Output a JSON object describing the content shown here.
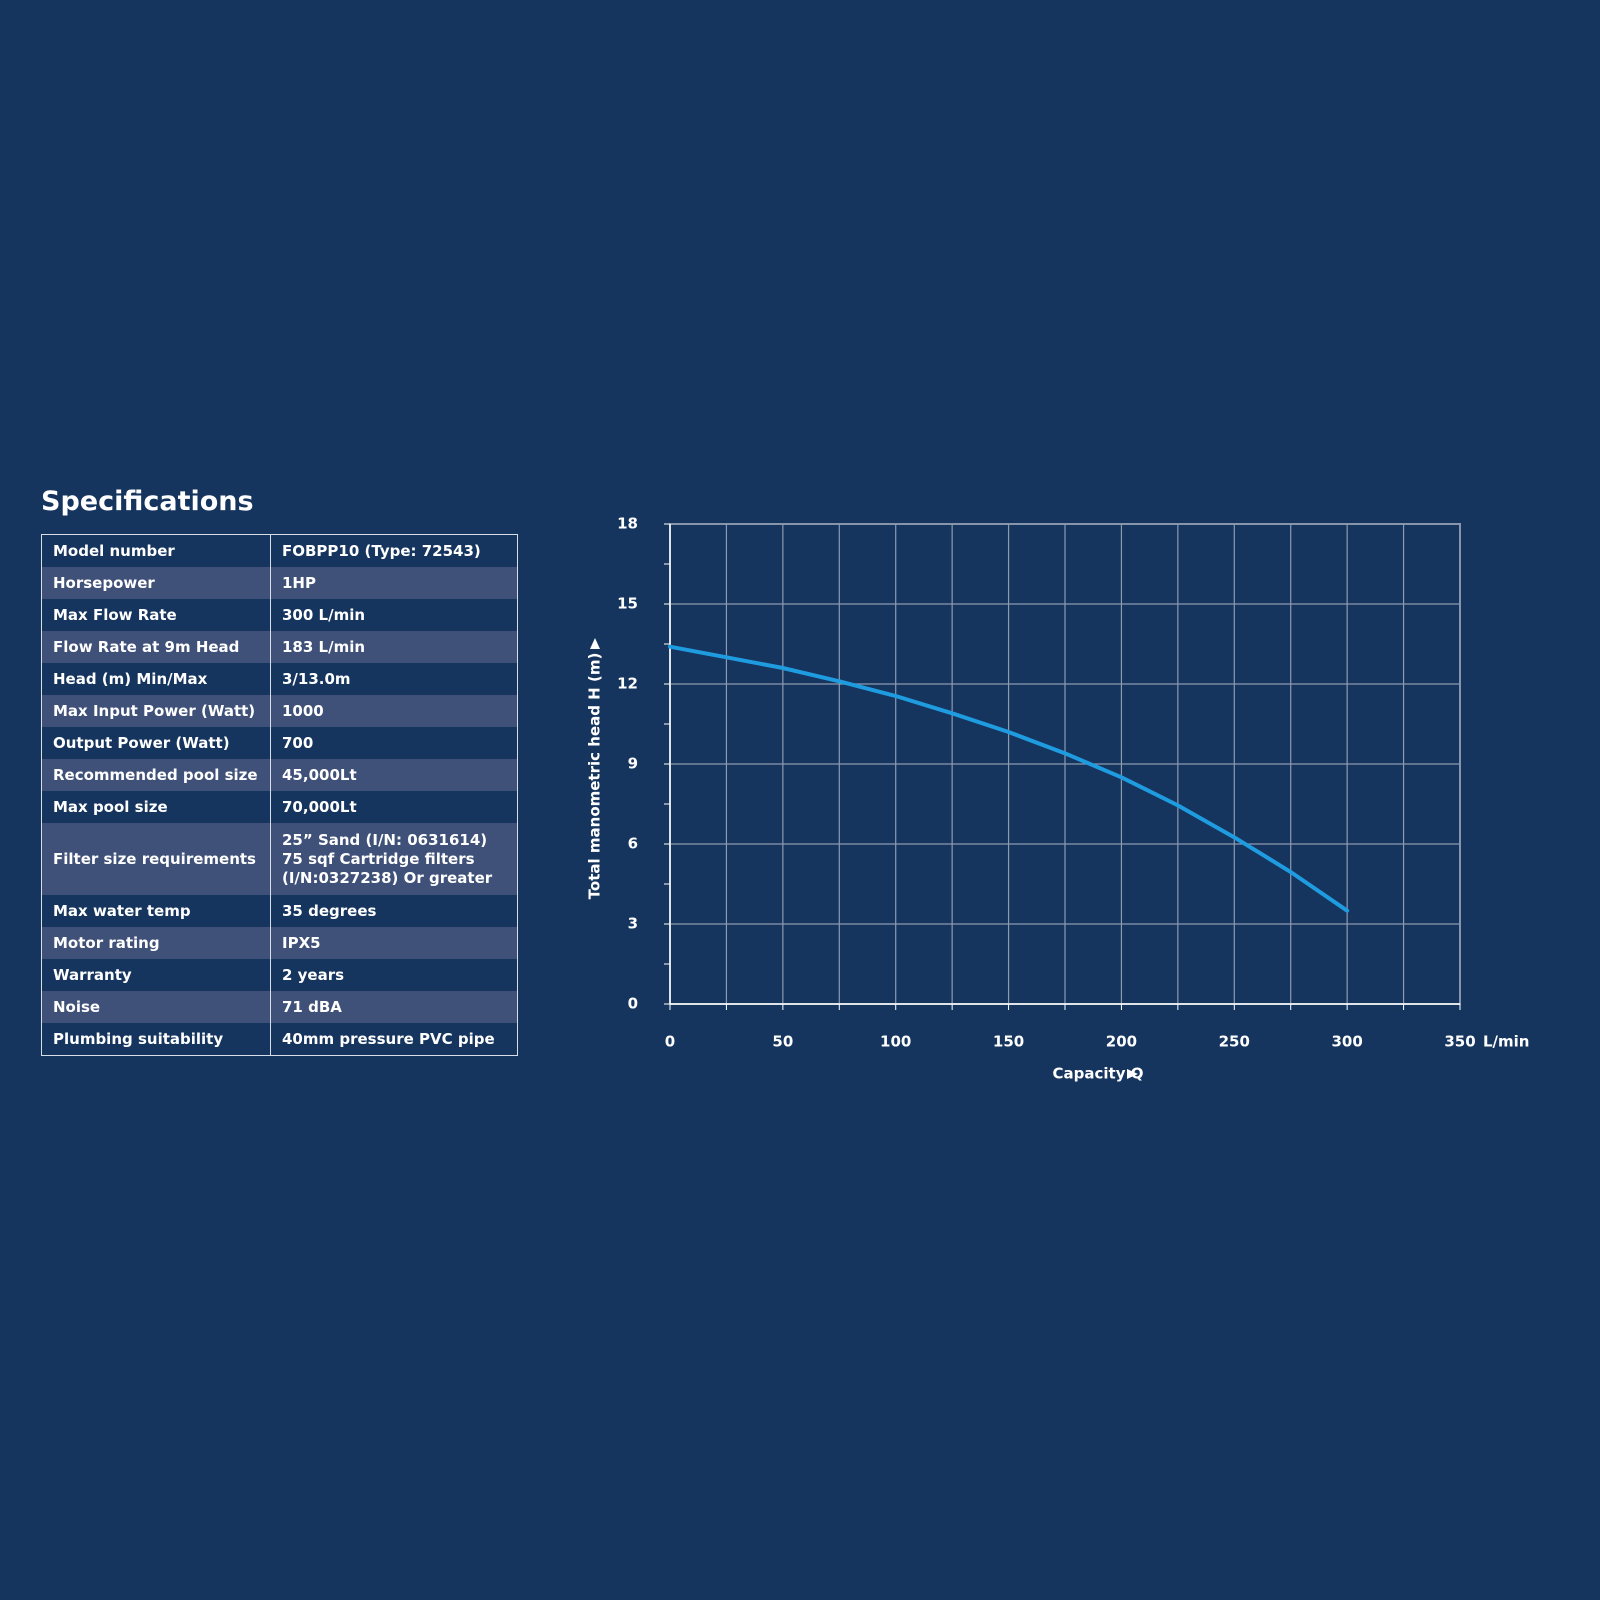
{
  "specifications": {
    "title": "Specifications",
    "rows": [
      {
        "label": "Model number",
        "value": "FOBPP10 (Type: 72543)"
      },
      {
        "label": "Horsepower",
        "value": "1HP"
      },
      {
        "label": "Max Flow Rate",
        "value": "300 L/min"
      },
      {
        "label": "Flow Rate at 9m Head",
        "value": "183 L/min"
      },
      {
        "label": "Head (m) Min/Max",
        "value": "3/13.0m"
      },
      {
        "label": "Max Input Power (Watt)",
        "value": "1000"
      },
      {
        "label": "Output Power (Watt)",
        "value": "700"
      },
      {
        "label": "Recommended pool size",
        "value": "45,000Lt"
      },
      {
        "label": "Max pool size",
        "value": "70,000Lt"
      },
      {
        "label": "Filter size requirements",
        "lines": [
          "25” Sand (I/N: 0631614)",
          "75 sqf Cartridge filters",
          "(I/N:0327238) Or greater"
        ]
      },
      {
        "label": "Max water temp",
        "value": "35 degrees"
      },
      {
        "label": "Motor rating",
        "value": "IPX5"
      },
      {
        "label": "Warranty",
        "value": "2 years"
      },
      {
        "label": "Noise",
        "value": "71 dBA"
      },
      {
        "label": "Plumbing suitability",
        "value": "40mm pressure PVC pipe"
      }
    ]
  },
  "chart_data": {
    "type": "line",
    "x_label": "Capacity Q",
    "x_unit": "L/min",
    "y_label": "Total manometric head H (m)",
    "x": [
      0,
      25,
      50,
      75,
      100,
      125,
      150,
      175,
      200,
      225,
      250,
      275,
      300
    ],
    "series": [
      {
        "color": "#1f9ce0",
        "values": [
          13.4,
          13.0,
          12.6,
          12.1,
          11.55,
          10.9,
          10.2,
          9.4,
          8.5,
          7.45,
          6.25,
          4.95,
          3.5
        ]
      }
    ],
    "xlim": [
      0,
      350
    ],
    "xticks": [
      0,
      50,
      100,
      150,
      200,
      250,
      300,
      350
    ],
    "xminorticks": [
      25,
      75,
      125,
      175,
      225,
      275,
      325
    ],
    "ylim": [
      0,
      18
    ],
    "yticks": [
      0,
      3,
      6,
      9,
      12,
      15,
      18
    ],
    "yminorticks": [
      1.5,
      4.5,
      7.5,
      10.5,
      13.5,
      16.5
    ],
    "grid": true
  }
}
